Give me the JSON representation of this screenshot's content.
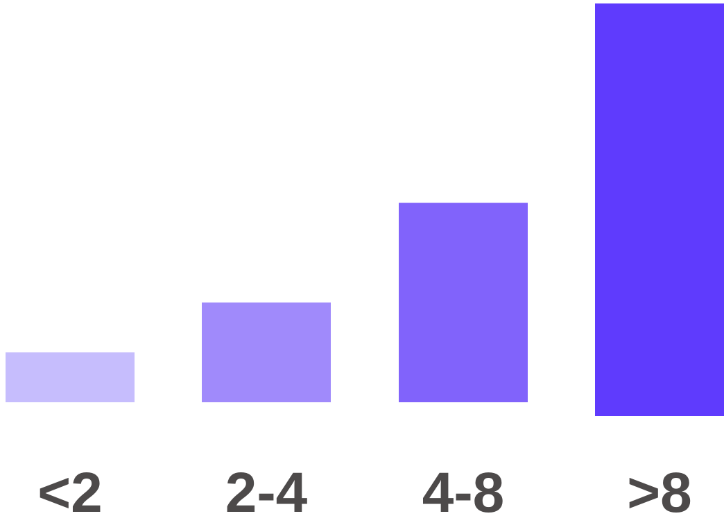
{
  "chart_data": {
    "type": "bar",
    "title": "",
    "xlabel": "",
    "ylabel": "",
    "categories": [
      "<2",
      "2-4",
      "4-8",
      ">8"
    ],
    "values": [
      1,
      2,
      4,
      8
    ],
    "ylim": [
      0,
      8
    ],
    "grid": false,
    "legend": "none",
    "colors": [
      "#c6bdfd",
      "#a08afb",
      "#8163fb",
      "#5f3bfd"
    ],
    "label_color": "#4d4a4a"
  }
}
